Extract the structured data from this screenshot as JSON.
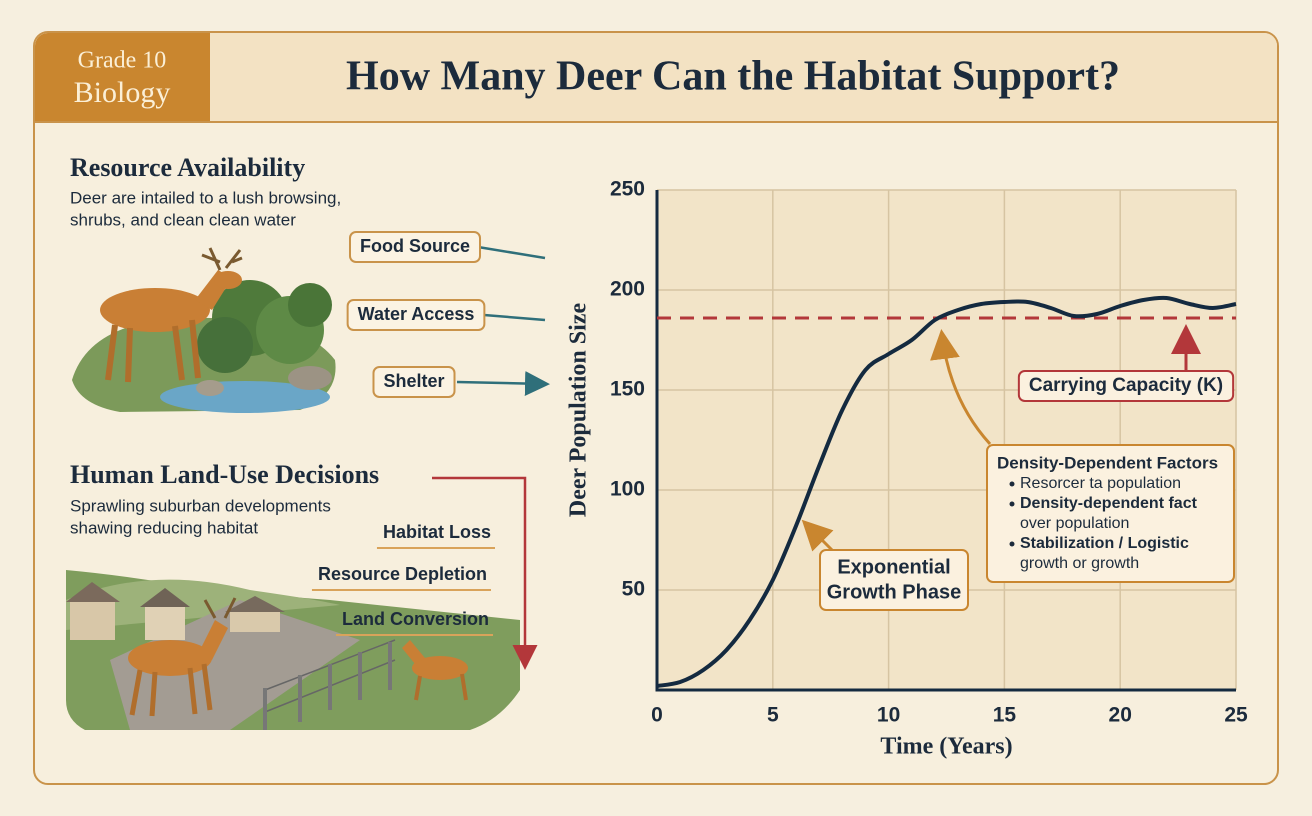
{
  "header": {
    "badge": [
      "Grade 10",
      "Biology"
    ],
    "title": "How Many Deer Can the Habitat Support?"
  },
  "resources": {
    "heading": "Resource Availability",
    "description": [
      "Deer are intailed to a lush browsing,",
      "shrubs, and clean clean water"
    ],
    "labels": [
      "Food Source",
      "Water Access",
      "Shelter"
    ]
  },
  "land_use": {
    "heading": "Human Land-Use Decisions",
    "description": [
      "Sprawling suburban developments",
      "shawing reducing habitat"
    ],
    "labels": [
      "Habitat Loss",
      "Resource Depletion",
      "Land Conversion"
    ]
  },
  "chart_data": {
    "type": "line",
    "x_label": "Time (Years)",
    "y_label": "Deer Population Size",
    "x": [
      0,
      1,
      2,
      3,
      4,
      5,
      6,
      7,
      8,
      9,
      10,
      11,
      12,
      13,
      14,
      15,
      16,
      17,
      18,
      19,
      20,
      21,
      22,
      23,
      24,
      25
    ],
    "series": [
      {
        "name": "Deer population",
        "color": "#142a40",
        "values": [
          2,
          4,
          10,
          20,
          35,
          55,
          82,
          112,
          140,
          160,
          168,
          175,
          185,
          190,
          193,
          194,
          194,
          191,
          187,
          188,
          192,
          195,
          196,
          193,
          191,
          193
        ]
      }
    ],
    "reference_line": {
      "value": 186,
      "label": "Carrying Capacity (K)",
      "color": "#b3373a"
    },
    "xlim": [
      0,
      25
    ],
    "xticks": [
      0,
      5,
      10,
      15,
      20,
      25
    ],
    "ylim": [
      0,
      250
    ],
    "yticks": [
      50,
      100,
      150,
      200,
      250
    ],
    "grid": true,
    "annotations": {
      "exponential": [
        "Exponential",
        "Growth Phase"
      ],
      "density": {
        "title": "Density-Dependent Factors",
        "items": [
          [
            "Resorcer ta population"
          ],
          [
            "Density-dependent fact",
            "over population"
          ],
          [
            "Stabilization / Logistic",
            "growth or growth"
          ]
        ]
      }
    }
  }
}
